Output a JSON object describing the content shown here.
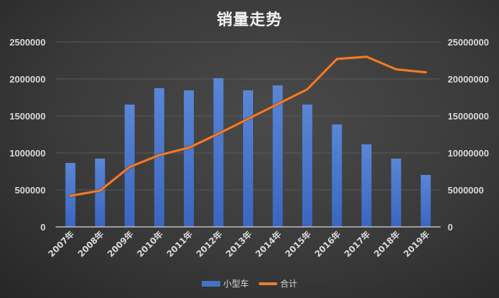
{
  "colors": {
    "bar": "#4472c4",
    "line": "#ed7d31",
    "grid": "#5a5a5a",
    "axis": "#bfbfbf",
    "text": "#d9d9d9"
  },
  "chart_data": {
    "type": "bar+line",
    "title": "销量走势",
    "categories": [
      "2007年",
      "2008年",
      "2009年",
      "2010年",
      "2011年",
      "2012年",
      "2013年",
      "2014年",
      "2015年",
      "2016年",
      "2017年",
      "2018年",
      "2019年"
    ],
    "series": [
      {
        "name": "小型车",
        "type": "bar",
        "axis": "left",
        "values": [
          865000,
          923000,
          1654000,
          1875000,
          1846000,
          2010000,
          1846000,
          1913000,
          1654000,
          1385000,
          1115000,
          923000,
          702000
        ]
      },
      {
        "name": "合计",
        "type": "line",
        "axis": "right",
        "values": [
          4200000,
          4900000,
          8100000,
          9700000,
          10700000,
          12600000,
          14600000,
          16600000,
          18600000,
          22700000,
          23000000,
          21300000,
          20900000
        ]
      }
    ],
    "y_left": {
      "ticks": [
        0,
        500000,
        1000000,
        1500000,
        2000000,
        2500000
      ],
      "ylim": [
        0,
        2500000
      ]
    },
    "y_right": {
      "ticks": [
        0,
        5000000,
        10000000,
        15000000,
        20000000,
        25000000
      ],
      "ylim": [
        0,
        25000000
      ]
    },
    "xlabel": "",
    "ylabel": "",
    "grid": true,
    "legend_position": "bottom"
  },
  "legend": [
    {
      "label": "小型车",
      "kind": "bar"
    },
    {
      "label": "合计",
      "kind": "line"
    }
  ]
}
